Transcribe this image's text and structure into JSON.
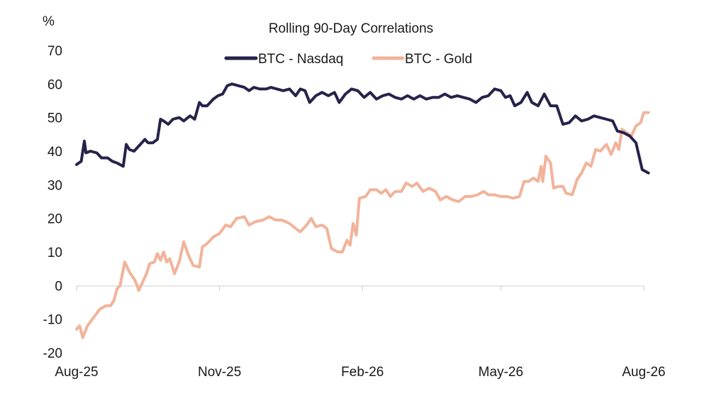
{
  "chart_data": {
    "type": "line",
    "title": "Rolling 90-Day Correlations",
    "ylabel": "%",
    "xlabel": "",
    "ylim": [
      -20,
      70
    ],
    "yticks": [
      -20,
      -10,
      0,
      10,
      20,
      30,
      40,
      50,
      60,
      70
    ],
    "xlim": [
      "2025-08-01",
      "2026-08-10"
    ],
    "xticks": [
      {
        "label": "Aug-25",
        "date": "2025-08-01"
      },
      {
        "label": "Nov-25",
        "date": "2025-11-01"
      },
      {
        "label": "Feb-26",
        "date": "2026-02-01"
      },
      {
        "label": "May-26",
        "date": "2026-05-01"
      },
      {
        "label": "Aug-26",
        "date": "2026-08-01"
      }
    ],
    "grid": false,
    "legend": "top-center",
    "colors": {
      "btc_nasdaq": "#26234a",
      "btc_gold": "#f2b39a"
    },
    "series": [
      {
        "name": "BTC - Nasdaq",
        "color": "#26234a",
        "points": [
          [
            "2025-08-01",
            36
          ],
          [
            "2025-08-04",
            37
          ],
          [
            "2025-08-06",
            43
          ],
          [
            "2025-08-07",
            39.5
          ],
          [
            "2025-08-10",
            40
          ],
          [
            "2025-08-14",
            39.5
          ],
          [
            "2025-08-17",
            38
          ],
          [
            "2025-08-21",
            38
          ],
          [
            "2025-08-24",
            37
          ],
          [
            "2025-08-27",
            36.5
          ],
          [
            "2025-08-31",
            35.5
          ],
          [
            "2025-09-02",
            42
          ],
          [
            "2025-09-04",
            40.5
          ],
          [
            "2025-09-07",
            40
          ],
          [
            "2025-09-10",
            41.5
          ],
          [
            "2025-09-14",
            43.5
          ],
          [
            "2025-09-16",
            42.5
          ],
          [
            "2025-09-19",
            42.5
          ],
          [
            "2025-09-22",
            43.5
          ],
          [
            "2025-09-24",
            49.5
          ],
          [
            "2025-09-26",
            49
          ],
          [
            "2025-09-29",
            48
          ],
          [
            "2025-10-02",
            49.5
          ],
          [
            "2025-10-06",
            50
          ],
          [
            "2025-10-09",
            49
          ],
          [
            "2025-10-13",
            50.5
          ],
          [
            "2025-10-16",
            49.5
          ],
          [
            "2025-10-19",
            54.5
          ],
          [
            "2025-10-21",
            53.5
          ],
          [
            "2025-10-24",
            53.5
          ],
          [
            "2025-10-28",
            55.5
          ],
          [
            "2025-10-31",
            56.5
          ],
          [
            "2025-11-03",
            57
          ],
          [
            "2025-11-06",
            59.5
          ],
          [
            "2025-11-09",
            60
          ],
          [
            "2025-11-13",
            59.5
          ],
          [
            "2025-11-17",
            59
          ],
          [
            "2025-11-20",
            58
          ],
          [
            "2025-11-23",
            59
          ],
          [
            "2025-11-27",
            58.5
          ],
          [
            "2025-12-01",
            58.5
          ],
          [
            "2025-12-04",
            59
          ],
          [
            "2025-12-08",
            58.5
          ],
          [
            "2025-12-12",
            58
          ],
          [
            "2025-12-16",
            58.5
          ],
          [
            "2025-12-20",
            56.5
          ],
          [
            "2025-12-23",
            58.5
          ],
          [
            "2025-12-26",
            58
          ],
          [
            "2025-12-29",
            54.5
          ],
          [
            "2026-01-02",
            56.5
          ],
          [
            "2026-01-06",
            57.5
          ],
          [
            "2026-01-10",
            56.5
          ],
          [
            "2026-01-14",
            57.5
          ],
          [
            "2026-01-17",
            54.5
          ],
          [
            "2026-01-21",
            57
          ],
          [
            "2026-01-25",
            58.5
          ],
          [
            "2026-01-29",
            58
          ],
          [
            "2026-02-02",
            56
          ],
          [
            "2026-02-06",
            57.5
          ],
          [
            "2026-02-10",
            55.5
          ],
          [
            "2026-02-14",
            56.5
          ],
          [
            "2026-02-18",
            57
          ],
          [
            "2026-02-22",
            56
          ],
          [
            "2026-02-26",
            55.5
          ],
          [
            "2026-03-02",
            56.5
          ],
          [
            "2026-03-06",
            55.5
          ],
          [
            "2026-03-10",
            56.5
          ],
          [
            "2026-03-14",
            55.5
          ],
          [
            "2026-03-18",
            56
          ],
          [
            "2026-03-22",
            56
          ],
          [
            "2026-03-26",
            57
          ],
          [
            "2026-03-30",
            56
          ],
          [
            "2026-04-03",
            56.5
          ],
          [
            "2026-04-07",
            56
          ],
          [
            "2026-04-11",
            55.5
          ],
          [
            "2026-04-15",
            54.5
          ],
          [
            "2026-04-19",
            56
          ],
          [
            "2026-04-23",
            56.5
          ],
          [
            "2026-04-27",
            58.5
          ],
          [
            "2026-05-01",
            58
          ],
          [
            "2026-05-04",
            56
          ],
          [
            "2026-05-07",
            56.5
          ],
          [
            "2026-05-10",
            53.5
          ],
          [
            "2026-05-14",
            54.5
          ],
          [
            "2026-05-18",
            57.5
          ],
          [
            "2026-05-21",
            54.5
          ],
          [
            "2026-05-25",
            53.5
          ],
          [
            "2026-05-29",
            57
          ],
          [
            "2026-06-02",
            53.5
          ],
          [
            "2026-06-06",
            53.5
          ],
          [
            "2026-06-10",
            48
          ],
          [
            "2026-06-14",
            48.5
          ],
          [
            "2026-06-18",
            50.5
          ],
          [
            "2026-06-22",
            49
          ],
          [
            "2026-06-26",
            49.5
          ],
          [
            "2026-06-30",
            50.5
          ],
          [
            "2026-07-04",
            50
          ],
          [
            "2026-07-08",
            49.5
          ],
          [
            "2026-07-12",
            49
          ],
          [
            "2026-07-15",
            46
          ],
          [
            "2026-07-19",
            45.5
          ],
          [
            "2026-07-23",
            44.5
          ],
          [
            "2026-07-27",
            42.5
          ],
          [
            "2026-07-31",
            34.5
          ],
          [
            "2026-08-04",
            33.5
          ]
        ]
      },
      {
        "name": "BTC - Gold",
        "color": "#f2b39a",
        "points": [
          [
            "2025-08-01",
            -13
          ],
          [
            "2025-08-03",
            -12
          ],
          [
            "2025-08-05",
            -15.5
          ],
          [
            "2025-08-08",
            -12
          ],
          [
            "2025-08-12",
            -9.5
          ],
          [
            "2025-08-16",
            -7
          ],
          [
            "2025-08-20",
            -6
          ],
          [
            "2025-08-23",
            -6
          ],
          [
            "2025-08-25",
            -4.5
          ],
          [
            "2025-08-27",
            -1
          ],
          [
            "2025-08-29",
            0
          ],
          [
            "2025-09-01",
            7
          ],
          [
            "2025-09-04",
            4
          ],
          [
            "2025-09-07",
            2
          ],
          [
            "2025-09-09",
            0
          ],
          [
            "2025-09-10",
            -1.5
          ],
          [
            "2025-09-13",
            1.5
          ],
          [
            "2025-09-15",
            3.5
          ],
          [
            "2025-09-17",
            6.5
          ],
          [
            "2025-09-20",
            7
          ],
          [
            "2025-09-22",
            9.5
          ],
          [
            "2025-09-24",
            7.5
          ],
          [
            "2025-09-26",
            10
          ],
          [
            "2025-09-28",
            7
          ],
          [
            "2025-09-30",
            8
          ],
          [
            "2025-10-03",
            3.5
          ],
          [
            "2025-10-06",
            7
          ],
          [
            "2025-10-09",
            13
          ],
          [
            "2025-10-12",
            9
          ],
          [
            "2025-10-15",
            6
          ],
          [
            "2025-10-19",
            5.5
          ],
          [
            "2025-10-21",
            11.5
          ],
          [
            "2025-10-24",
            12.5
          ],
          [
            "2025-10-28",
            14.5
          ],
          [
            "2025-11-01",
            15.5
          ],
          [
            "2025-11-05",
            18
          ],
          [
            "2025-11-08",
            17.5
          ],
          [
            "2025-11-12",
            20
          ],
          [
            "2025-11-17",
            20.5
          ],
          [
            "2025-11-20",
            18
          ],
          [
            "2025-11-24",
            19
          ],
          [
            "2025-11-29",
            19.5
          ],
          [
            "2025-12-03",
            20.5
          ],
          [
            "2025-12-07",
            19.5
          ],
          [
            "2025-12-11",
            19.5
          ],
          [
            "2025-12-16",
            18.5
          ],
          [
            "2025-12-20",
            17
          ],
          [
            "2025-12-23",
            16
          ],
          [
            "2025-12-27",
            18
          ],
          [
            "2025-12-30",
            20
          ],
          [
            "2026-01-02",
            17.5
          ],
          [
            "2026-01-06",
            18
          ],
          [
            "2026-01-09",
            17
          ],
          [
            "2026-01-12",
            11
          ],
          [
            "2026-01-16",
            10
          ],
          [
            "2026-01-19",
            10
          ],
          [
            "2026-01-22",
            13.5
          ],
          [
            "2026-01-24",
            12
          ],
          [
            "2026-01-26",
            18.5
          ],
          [
            "2026-01-28",
            15
          ],
          [
            "2026-01-30",
            26
          ],
          [
            "2026-02-03",
            26.5
          ],
          [
            "2026-02-06",
            28.5
          ],
          [
            "2026-02-10",
            28.5
          ],
          [
            "2026-02-13",
            27.5
          ],
          [
            "2026-02-16",
            28.5
          ],
          [
            "2026-02-19",
            26.5
          ],
          [
            "2026-02-22",
            28
          ],
          [
            "2026-02-26",
            28
          ],
          [
            "2026-03-01",
            30.5
          ],
          [
            "2026-03-05",
            29.5
          ],
          [
            "2026-03-08",
            30.5
          ],
          [
            "2026-03-12",
            28
          ],
          [
            "2026-03-16",
            29
          ],
          [
            "2026-03-20",
            28
          ],
          [
            "2026-03-23",
            25.5
          ],
          [
            "2026-03-27",
            26.5
          ],
          [
            "2026-03-31",
            25.5
          ],
          [
            "2026-04-04",
            25
          ],
          [
            "2026-04-08",
            26.5
          ],
          [
            "2026-04-12",
            26.5
          ],
          [
            "2026-04-16",
            27
          ],
          [
            "2026-04-20",
            28
          ],
          [
            "2026-04-23",
            27
          ],
          [
            "2026-04-27",
            27
          ],
          [
            "2026-05-01",
            26.5
          ],
          [
            "2026-05-05",
            26.5
          ],
          [
            "2026-05-09",
            26
          ],
          [
            "2026-05-13",
            26.5
          ],
          [
            "2026-05-16",
            31
          ],
          [
            "2026-05-19",
            31
          ],
          [
            "2026-05-22",
            32
          ],
          [
            "2026-05-25",
            31
          ],
          [
            "2026-05-27",
            35.5
          ],
          [
            "2026-05-28",
            31
          ],
          [
            "2026-05-30",
            38.5
          ],
          [
            "2026-06-02",
            36.5
          ],
          [
            "2026-06-04",
            29
          ],
          [
            "2026-06-07",
            29.5
          ],
          [
            "2026-06-10",
            29.5
          ],
          [
            "2026-06-12",
            27.5
          ],
          [
            "2026-06-16",
            27
          ],
          [
            "2026-06-19",
            31.5
          ],
          [
            "2026-06-22",
            33.5
          ],
          [
            "2026-06-25",
            36.5
          ],
          [
            "2026-06-28",
            35.5
          ],
          [
            "2026-07-01",
            40.5
          ],
          [
            "2026-07-04",
            40
          ],
          [
            "2026-07-08",
            42
          ],
          [
            "2026-07-11",
            39
          ],
          [
            "2026-07-14",
            42.5
          ],
          [
            "2026-07-16",
            40.5
          ],
          [
            "2026-07-18",
            46.5
          ],
          [
            "2026-07-21",
            45.5
          ],
          [
            "2026-07-24",
            44.5
          ],
          [
            "2026-07-27",
            47.5
          ],
          [
            "2026-07-30",
            48.5
          ],
          [
            "2026-08-01",
            51.5
          ],
          [
            "2026-08-04",
            51.5
          ]
        ]
      }
    ]
  }
}
